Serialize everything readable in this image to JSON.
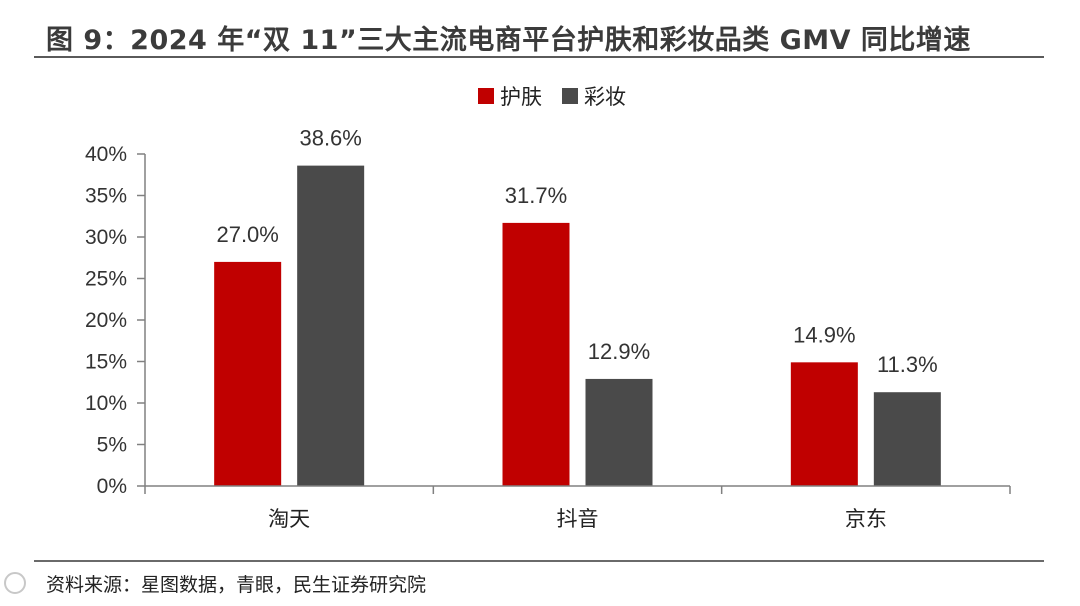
{
  "title": "图 9：2024 年“双 11”三大主流电商平台护肤和彩妆品类 GMV 同比增速",
  "source": "资料来源：星图数据，青眼，民生证券研究院",
  "colors": {
    "series1": "#c00000",
    "series2": "#4a4a4a",
    "axis": "#808080",
    "rule": "#5a5a5a"
  },
  "chart_data": {
    "type": "bar",
    "categories": [
      "淘天",
      "抖音",
      "京东"
    ],
    "series": [
      {
        "name": "护肤",
        "values": [
          27.0,
          31.7,
          14.9
        ],
        "labels": [
          "27.0%",
          "31.7%",
          "14.9%"
        ]
      },
      {
        "name": "彩妆",
        "values": [
          38.6,
          12.9,
          11.3
        ],
        "labels": [
          "38.6%",
          "12.9%",
          "11.3%"
        ]
      }
    ],
    "ylim": [
      0,
      40
    ],
    "yticks": [
      0,
      5,
      10,
      15,
      20,
      25,
      30,
      35,
      40
    ],
    "ytick_labels": [
      "0%",
      "5%",
      "10%",
      "15%",
      "20%",
      "25%",
      "30%",
      "35%",
      "40%"
    ],
    "grid": false,
    "legend": "top-center"
  }
}
